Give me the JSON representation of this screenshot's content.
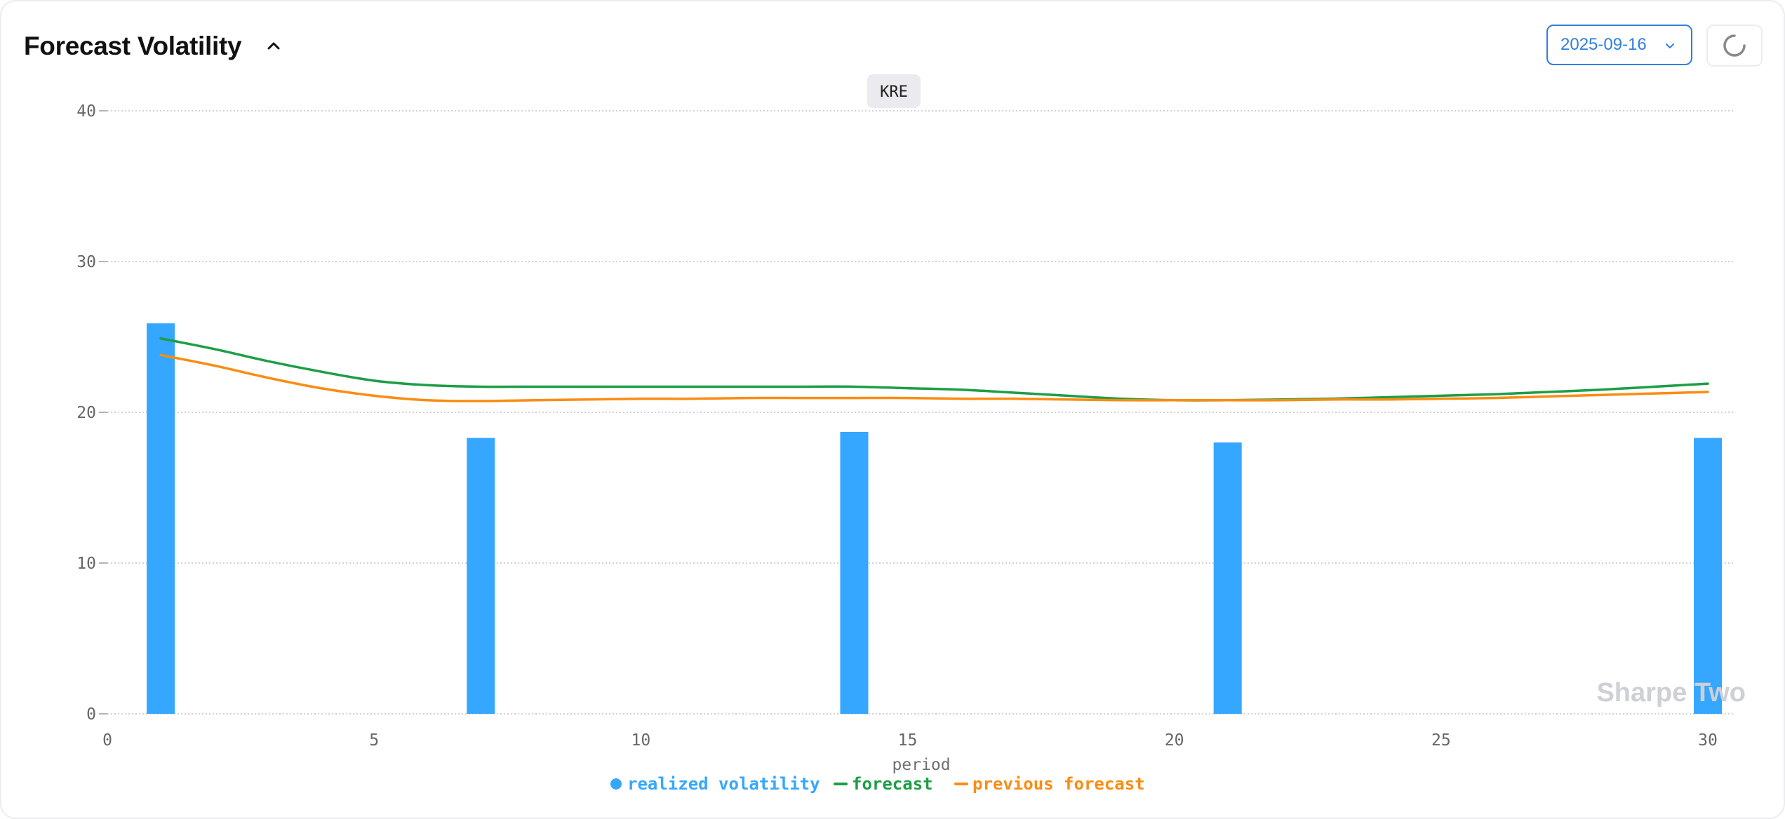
{
  "header": {
    "title": "Forecast Volatility",
    "date_value": "2025-09-16"
  },
  "icons": {
    "collapse": "chevron-up-icon",
    "date_dropdown": "chevron-down-icon",
    "refresh": "loading-spinner-icon"
  },
  "colors": {
    "realized": "#35a7ff",
    "forecast": "#1c9e46",
    "previous": "#fb8c12",
    "accent": "#2f7fe0"
  },
  "watermark": "Sharpe Two",
  "chart_data": {
    "type": "bar",
    "title": "KRE",
    "xlabel": "period",
    "ylabel": "",
    "xlim": [
      0,
      30
    ],
    "ylim": [
      0,
      40
    ],
    "xticks": [
      0,
      5,
      10,
      15,
      20,
      25,
      30
    ],
    "yticks": [
      0,
      10,
      20,
      30,
      40
    ],
    "grid": "horizontal dotted",
    "legend_position": "bottom-center",
    "series": [
      {
        "name": "realized volatility",
        "type": "bar",
        "x": [
          1,
          7,
          14,
          21,
          30
        ],
        "values": [
          25.9,
          18.3,
          18.7,
          18.0,
          18.3
        ]
      },
      {
        "name": "forecast",
        "type": "line",
        "x": [
          1,
          2,
          3,
          4,
          5,
          6,
          7,
          8,
          9,
          10,
          11,
          12,
          13,
          14,
          15,
          16,
          17,
          18,
          19,
          20,
          21,
          22,
          23,
          24,
          25,
          26,
          27,
          28,
          29,
          30
        ],
        "values": [
          24.9,
          24.2,
          23.4,
          22.7,
          22.1,
          21.8,
          21.7,
          21.7,
          21.7,
          21.7,
          21.7,
          21.7,
          21.7,
          21.7,
          21.6,
          21.5,
          21.3,
          21.1,
          20.9,
          20.8,
          20.8,
          20.85,
          20.9,
          21.0,
          21.1,
          21.2,
          21.35,
          21.5,
          21.7,
          21.9
        ]
      },
      {
        "name": "previous forecast",
        "type": "line",
        "x": [
          1,
          2,
          3,
          4,
          5,
          6,
          7,
          8,
          9,
          10,
          11,
          12,
          13,
          14,
          15,
          16,
          17,
          18,
          19,
          20,
          21,
          22,
          23,
          24,
          25,
          26,
          27,
          28,
          29,
          30
        ],
        "values": [
          23.8,
          23.1,
          22.3,
          21.6,
          21.1,
          20.8,
          20.75,
          20.8,
          20.85,
          20.9,
          20.9,
          20.95,
          20.95,
          20.95,
          20.95,
          20.9,
          20.9,
          20.85,
          20.8,
          20.8,
          20.8,
          20.8,
          20.85,
          20.85,
          20.9,
          20.95,
          21.05,
          21.15,
          21.25,
          21.35
        ]
      }
    ]
  }
}
